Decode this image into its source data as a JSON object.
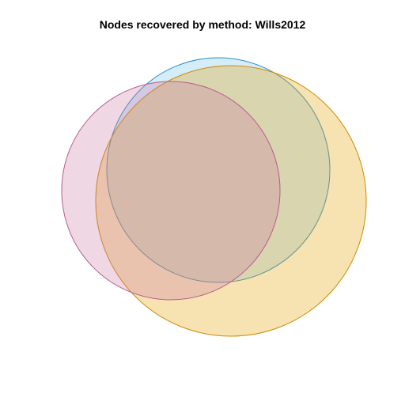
{
  "title": "Nodes recovered by method: Wills2012",
  "sets": [
    {
      "key": "blue",
      "fill": "#56B4E9",
      "stroke": "#2E8FC7",
      "opacity": 0.25
    },
    {
      "key": "orange",
      "fill": "#E69F00",
      "stroke": "#D08A00",
      "opacity": 0.3
    },
    {
      "key": "pink",
      "fill": "#CC79A7",
      "stroke": "#B85C8E",
      "opacity": 0.3
    }
  ]
}
